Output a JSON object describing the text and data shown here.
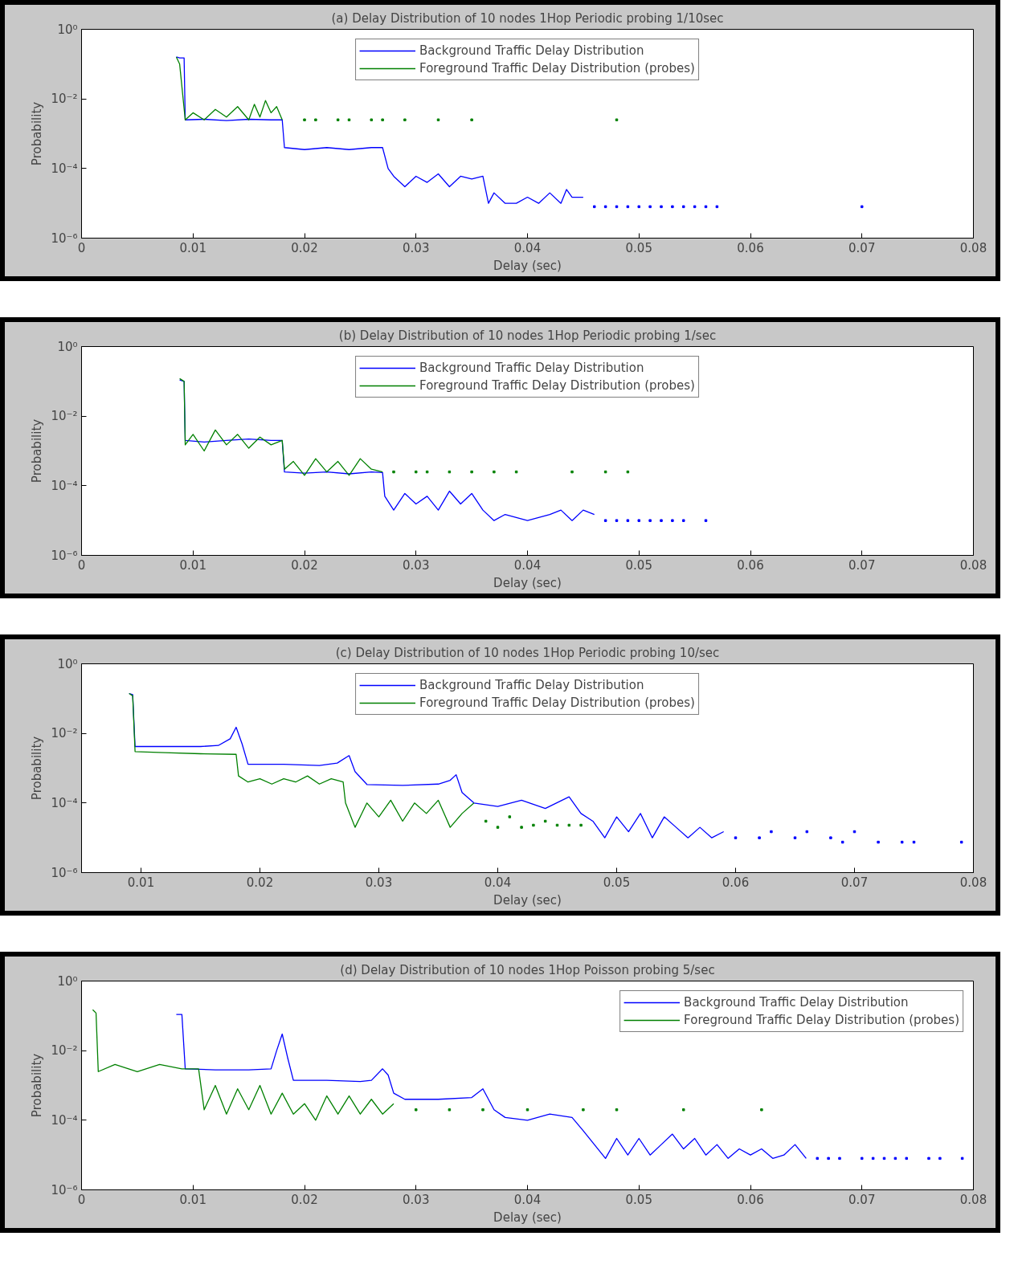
{
  "chart_data": [
    {
      "type": "line",
      "title": "(a) Delay Distribution of 10 nodes 1Hop Periodic probing 1/10sec",
      "xlabel": "Delay (sec)",
      "ylabel": "Probability",
      "log": "y",
      "grid": false,
      "legend": "top",
      "xlim": [
        0,
        0.08
      ],
      "xticks": [
        0,
        0.01,
        0.02,
        0.03,
        0.04,
        0.05,
        0.06,
        0.07,
        0.08
      ],
      "ylim": [
        1e-06,
        1
      ],
      "yticks": [
        {
          "value": 1e-06,
          "label": "10⁻⁶"
        },
        {
          "value": 0.0001,
          "label": "10⁻⁴"
        },
        {
          "value": 0.01,
          "label": "10⁻²"
        },
        {
          "value": 1,
          "label": "10⁰"
        }
      ],
      "series": [
        {
          "name": "Background Traffic Delay Distribution",
          "color": "#0000ff",
          "x": [
            0.0085,
            0.0088,
            0.0092,
            0.0093,
            0.011,
            0.013,
            0.015,
            0.017,
            0.018,
            0.0182,
            0.02,
            0.022,
            0.024,
            0.026,
            0.027,
            0.0275,
            0.028,
            0.029,
            0.03,
            0.031,
            0.032,
            0.033,
            0.034,
            0.035,
            0.036,
            0.0365,
            0.037,
            0.038,
            0.039,
            0.04,
            0.041,
            0.042,
            0.043,
            0.0435,
            0.044,
            0.045
          ],
          "values": [
            0.16,
            0.15,
            0.15,
            0.0025,
            0.0026,
            0.0024,
            0.0026,
            0.0025,
            0.0025,
            0.0004,
            0.00035,
            0.0004,
            0.00035,
            0.0004,
            0.0004,
            0.0001,
            6e-05,
            3e-05,
            6e-05,
            4e-05,
            7e-05,
            3e-05,
            6e-05,
            5e-05,
            6e-05,
            1e-05,
            2e-05,
            1e-05,
            1e-05,
            1.5e-05,
            1e-05,
            2e-05,
            1e-05,
            2.5e-05,
            1.5e-05,
            1.5e-05
          ]
        },
        {
          "name": "Foreground Traffic Delay Distribution (probes)",
          "color": "#008000",
          "x": [
            0.0085,
            0.0088,
            0.0093,
            0.01,
            0.011,
            0.012,
            0.013,
            0.014,
            0.015,
            0.0155,
            0.016,
            0.0165,
            0.017,
            0.0175,
            0.018
          ],
          "values": [
            0.16,
            0.1,
            0.0025,
            0.004,
            0.0025,
            0.005,
            0.003,
            0.006,
            0.0025,
            0.007,
            0.003,
            0.009,
            0.004,
            0.006,
            0.0025
          ]
        },
        {
          "type": "scatter",
          "color": "#0000ff",
          "x": [
            0.046,
            0.047,
            0.048,
            0.049,
            0.05,
            0.051,
            0.052,
            0.053,
            0.054,
            0.055,
            0.056,
            0.057,
            0.07
          ],
          "values": [
            8e-06,
            8e-06,
            8e-06,
            8e-06,
            8e-06,
            8e-06,
            8e-06,
            8e-06,
            8e-06,
            8e-06,
            8e-06,
            8e-06,
            8e-06
          ]
        },
        {
          "type": "scatter",
          "color": "#008000",
          "x": [
            0.02,
            0.021,
            0.023,
            0.024,
            0.026,
            0.027,
            0.029,
            0.032,
            0.035,
            0.048
          ],
          "values": [
            0.0025,
            0.0025,
            0.0025,
            0.0025,
            0.0025,
            0.0025,
            0.0025,
            0.0025,
            0.0025,
            0.0025
          ]
        }
      ]
    },
    {
      "type": "line",
      "title": "(b) Delay Distribution of 10 nodes 1Hop Periodic probing 1/sec",
      "xlabel": "Delay (sec)",
      "ylabel": "Probability",
      "log": "y",
      "grid": false,
      "legend": "top",
      "xlim": [
        0,
        0.08
      ],
      "xticks": [
        0,
        0.01,
        0.02,
        0.03,
        0.04,
        0.05,
        0.06,
        0.07,
        0.08
      ],
      "ylim": [
        1e-06,
        1
      ],
      "yticks": [
        {
          "value": 1e-06,
          "label": "10⁻⁶"
        },
        {
          "value": 0.0001,
          "label": "10⁻⁴"
        },
        {
          "value": 0.01,
          "label": "10⁻²"
        },
        {
          "value": 1,
          "label": "10⁰"
        }
      ],
      "series": [
        {
          "name": "Background Traffic Delay Distribution",
          "color": "#0000ff",
          "x": [
            0.0088,
            0.0092,
            0.0093,
            0.011,
            0.013,
            0.015,
            0.017,
            0.018,
            0.0182,
            0.02,
            0.022,
            0.024,
            0.026,
            0.027,
            0.0272,
            0.028,
            0.029,
            0.03,
            0.031,
            0.032,
            0.033,
            0.034,
            0.035,
            0.036,
            0.037,
            0.038,
            0.04,
            0.042,
            0.043,
            0.044,
            0.045,
            0.046
          ],
          "values": [
            0.11,
            0.1,
            0.002,
            0.0018,
            0.002,
            0.0022,
            0.002,
            0.002,
            0.00025,
            0.00023,
            0.00025,
            0.00022,
            0.00025,
            0.00024,
            5e-05,
            2e-05,
            6e-05,
            3e-05,
            5e-05,
            2e-05,
            7e-05,
            3e-05,
            6e-05,
            2e-05,
            1e-05,
            1.5e-05,
            1e-05,
            1.5e-05,
            2e-05,
            1e-05,
            2e-05,
            1.5e-05
          ]
        },
        {
          "name": "Foreground Traffic Delay Distribution (probes)",
          "color": "#008000",
          "x": [
            0.0088,
            0.0092,
            0.0093,
            0.01,
            0.011,
            0.012,
            0.013,
            0.014,
            0.015,
            0.016,
            0.017,
            0.018,
            0.0182,
            0.019,
            0.02,
            0.021,
            0.022,
            0.023,
            0.024,
            0.025,
            0.026,
            0.027
          ],
          "values": [
            0.12,
            0.1,
            0.0015,
            0.003,
            0.001,
            0.004,
            0.0015,
            0.003,
            0.0012,
            0.0025,
            0.0015,
            0.002,
            0.0003,
            0.0005,
            0.0002,
            0.0006,
            0.00025,
            0.0005,
            0.0002,
            0.0006,
            0.0003,
            0.00025
          ]
        },
        {
          "type": "scatter",
          "color": "#0000ff",
          "x": [
            0.047,
            0.048,
            0.049,
            0.05,
            0.051,
            0.052,
            0.053,
            0.054,
            0.056
          ],
          "values": [
            1e-05,
            1e-05,
            1e-05,
            1e-05,
            1e-05,
            1e-05,
            1e-05,
            1e-05,
            1e-05
          ]
        },
        {
          "type": "scatter",
          "color": "#008000",
          "x": [
            0.028,
            0.03,
            0.031,
            0.033,
            0.035,
            0.037,
            0.039,
            0.044,
            0.047,
            0.049
          ],
          "values": [
            0.00025,
            0.00025,
            0.00025,
            0.00025,
            0.00025,
            0.00025,
            0.00025,
            0.00025,
            0.00025,
            0.00025
          ]
        }
      ]
    },
    {
      "type": "line",
      "title": "(c) Delay Distribution of 10 nodes 1Hop Periodic probing 10/sec",
      "xlabel": "Delay (sec)",
      "ylabel": "Probability",
      "log": "y",
      "grid": false,
      "legend": "top",
      "xlim": [
        0.005,
        0.08
      ],
      "xticks": [
        0.01,
        0.02,
        0.03,
        0.04,
        0.05,
        0.06,
        0.07,
        0.08
      ],
      "ylim": [
        1e-06,
        1
      ],
      "yticks": [
        {
          "value": 1e-06,
          "label": "10⁻⁶"
        },
        {
          "value": 0.0001,
          "label": "10⁻⁴"
        },
        {
          "value": 0.01,
          "label": "10⁻²"
        },
        {
          "value": 1,
          "label": "10⁰"
        }
      ],
      "series": [
        {
          "name": "Background Traffic Delay Distribution",
          "color": "#0000ff",
          "x": [
            0.009,
            0.0093,
            0.0095,
            0.012,
            0.015,
            0.0165,
            0.0175,
            0.018,
            0.0185,
            0.019,
            0.022,
            0.025,
            0.0265,
            0.0275,
            0.028,
            0.029,
            0.032,
            0.035,
            0.036,
            0.0365,
            0.037,
            0.038,
            0.04,
            0.042,
            0.044,
            0.046,
            0.047,
            0.048,
            0.049,
            0.05,
            0.051,
            0.052,
            0.053,
            0.054,
            0.055,
            0.056,
            0.057,
            0.058,
            0.059
          ],
          "values": [
            0.14,
            0.13,
            0.0042,
            0.0042,
            0.0042,
            0.0045,
            0.007,
            0.015,
            0.005,
            0.0013,
            0.0013,
            0.0012,
            0.0014,
            0.0023,
            0.0008,
            0.00034,
            0.00032,
            0.00035,
            0.00045,
            0.00065,
            0.0002,
            0.0001,
            8e-05,
            0.00012,
            7e-05,
            0.00015,
            5e-05,
            3e-05,
            1e-05,
            4e-05,
            1.5e-05,
            5e-05,
            1e-05,
            4e-05,
            2e-05,
            1e-05,
            2e-05,
            1e-05,
            1.5e-05
          ]
        },
        {
          "name": "Foreground Traffic Delay Distribution (probes)",
          "color": "#008000",
          "x": [
            0.009,
            0.0093,
            0.0095,
            0.012,
            0.015,
            0.018,
            0.0182,
            0.019,
            0.02,
            0.021,
            0.022,
            0.023,
            0.024,
            0.025,
            0.026,
            0.027,
            0.0272,
            0.028,
            0.029,
            0.03,
            0.031,
            0.032,
            0.033,
            0.034,
            0.035,
            0.036,
            0.037,
            0.038
          ],
          "values": [
            0.14,
            0.12,
            0.003,
            0.0028,
            0.0026,
            0.0025,
            0.0006,
            0.0004,
            0.0005,
            0.00035,
            0.0005,
            0.0004,
            0.0006,
            0.00035,
            0.0005,
            0.0004,
            0.0001,
            2e-05,
            0.0001,
            4e-05,
            0.00012,
            3e-05,
            0.0001,
            5e-05,
            0.00012,
            2e-05,
            5e-05,
            0.0001
          ]
        },
        {
          "type": "scatter",
          "color": "#0000ff",
          "x": [
            0.06,
            0.062,
            0.063,
            0.065,
            0.066,
            0.068,
            0.069,
            0.07,
            0.072,
            0.074,
            0.075,
            0.079
          ],
          "values": [
            1e-05,
            1e-05,
            1.5e-05,
            1e-05,
            1.5e-05,
            1e-05,
            7.5e-06,
            1.5e-05,
            7.5e-06,
            7.5e-06,
            7.5e-06,
            7.5e-06
          ]
        },
        {
          "type": "scatter",
          "color": "#008000",
          "x": [
            0.039,
            0.04,
            0.041,
            0.042,
            0.043,
            0.044,
            0.045,
            0.046,
            0.047
          ],
          "values": [
            3e-05,
            2e-05,
            4e-05,
            2e-05,
            2.3e-05,
            3e-05,
            2.3e-05,
            2.3e-05,
            2.3e-05
          ]
        }
      ]
    },
    {
      "type": "line",
      "title": "(d) Delay Distribution of 10 nodes 1Hop Poisson probing 5/sec",
      "xlabel": "Delay (sec)",
      "ylabel": "Probability",
      "log": "y",
      "grid": false,
      "legend": "top right",
      "xlim": [
        0,
        0.08
      ],
      "xticks": [
        0,
        0.01,
        0.02,
        0.03,
        0.04,
        0.05,
        0.06,
        0.07,
        0.08
      ],
      "ylim": [
        1e-06,
        1
      ],
      "yticks": [
        {
          "value": 1e-06,
          "label": "10⁻⁶"
        },
        {
          "value": 0.0001,
          "label": "10⁻⁴"
        },
        {
          "value": 0.01,
          "label": "10⁻²"
        },
        {
          "value": 1,
          "label": "10⁰"
        }
      ],
      "series": [
        {
          "name": "Background Traffic Delay Distribution",
          "color": "#0000ff",
          "x": [
            0.0085,
            0.009,
            0.0093,
            0.012,
            0.015,
            0.017,
            0.0175,
            0.018,
            0.0185,
            0.019,
            0.022,
            0.025,
            0.026,
            0.027,
            0.0275,
            0.028,
            0.029,
            0.032,
            0.035,
            0.036,
            0.0365,
            0.037,
            0.038,
            0.04,
            0.042,
            0.044,
            0.045,
            0.046,
            0.047,
            0.048,
            0.049,
            0.05,
            0.051,
            0.052,
            0.053,
            0.054,
            0.055,
            0.056,
            0.057,
            0.058,
            0.059,
            0.06,
            0.061,
            0.062,
            0.063,
            0.064,
            0.065
          ],
          "values": [
            0.11,
            0.11,
            0.003,
            0.0028,
            0.0028,
            0.003,
            0.01,
            0.03,
            0.006,
            0.0014,
            0.0014,
            0.0013,
            0.0014,
            0.003,
            0.002,
            0.0006,
            0.0004,
            0.0004,
            0.00045,
            0.0008,
            0.0004,
            0.0002,
            0.00012,
            0.0001,
            0.00015,
            0.00012,
            5e-05,
            2e-05,
            8e-06,
            3e-05,
            1e-05,
            3e-05,
            1e-05,
            2e-05,
            4e-05,
            1.5e-05,
            3e-05,
            1e-05,
            2e-05,
            8e-06,
            1.5e-05,
            1e-05,
            1.5e-05,
            8e-06,
            1e-05,
            2e-05,
            8e-06
          ]
        },
        {
          "name": "Foreground Traffic Delay Distribution (probes)",
          "color": "#008000",
          "x": [
            0.001,
            0.0013,
            0.0015,
            0.003,
            0.005,
            0.007,
            0.009,
            0.0105,
            0.011,
            0.012,
            0.013,
            0.014,
            0.015,
            0.016,
            0.017,
            0.018,
            0.019,
            0.02,
            0.021,
            0.022,
            0.023,
            0.024,
            0.025,
            0.026,
            0.027,
            0.028
          ],
          "values": [
            0.15,
            0.12,
            0.0025,
            0.004,
            0.0025,
            0.004,
            0.003,
            0.003,
            0.0002,
            0.001,
            0.00015,
            0.0008,
            0.0002,
            0.001,
            0.00015,
            0.0006,
            0.00015,
            0.0003,
            0.0001,
            0.0005,
            0.00015,
            0.0005,
            0.00015,
            0.0004,
            0.00015,
            0.0003
          ]
        },
        {
          "type": "scatter",
          "color": "#0000ff",
          "x": [
            0.066,
            0.067,
            0.068,
            0.07,
            0.071,
            0.072,
            0.073,
            0.074,
            0.076,
            0.077,
            0.079
          ],
          "values": [
            8e-06,
            8e-06,
            8e-06,
            8e-06,
            8e-06,
            8e-06,
            8e-06,
            8e-06,
            8e-06,
            8e-06,
            8e-06
          ]
        },
        {
          "type": "scatter",
          "color": "#008000",
          "x": [
            0.03,
            0.033,
            0.036,
            0.04,
            0.045,
            0.048,
            0.054,
            0.061
          ],
          "values": [
            0.0002,
            0.0002,
            0.0002,
            0.0002,
            0.0002,
            0.0002,
            0.0002,
            0.0002
          ]
        }
      ]
    }
  ]
}
